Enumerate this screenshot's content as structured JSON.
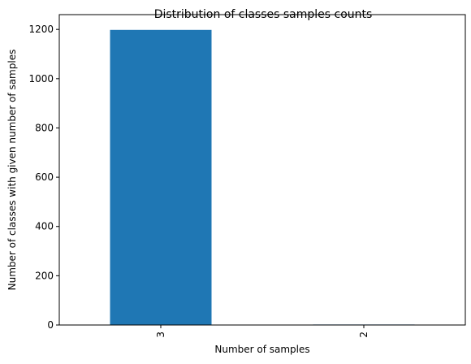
{
  "chart_data": {
    "type": "bar",
    "title": "Distribution of classes samples counts",
    "xlabel": "Number of samples",
    "ylabel": "Number of classes with given number of samples",
    "categories": [
      "3",
      "2"
    ],
    "values": [
      1198,
      2
    ],
    "ylim": [
      0,
      1260
    ],
    "yticks": [
      0,
      200,
      400,
      600,
      800,
      1000,
      1200
    ],
    "grid": false,
    "legend": "none",
    "bar_color": "#1f77b4",
    "xtick_rotation": "vertical"
  }
}
